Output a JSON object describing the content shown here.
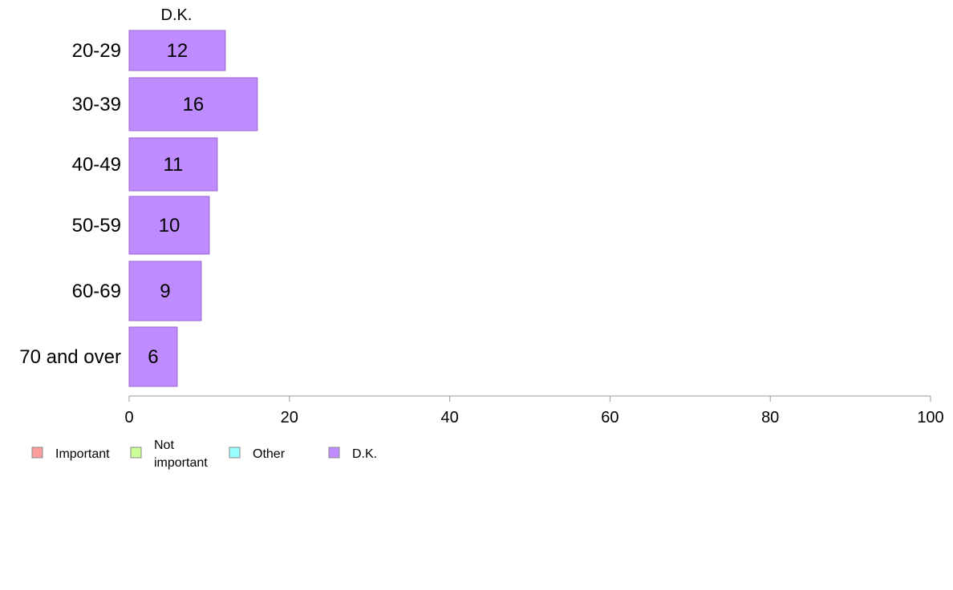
{
  "chart_data": {
    "type": "bar",
    "orientation": "horizontal",
    "panel_title": "D.K.",
    "categories": [
      "20-29",
      "30-39",
      "40-49",
      "50-59",
      "60-69",
      "70 and over"
    ],
    "series": [
      {
        "name": "D.K.",
        "color": "#bf8cff",
        "values": [
          12,
          16,
          11,
          10,
          9,
          6
        ]
      }
    ],
    "xlim": [
      0,
      100
    ],
    "xticks": [
      0,
      20,
      40,
      60,
      80,
      100
    ],
    "grid": false,
    "legend_position": "bottom-left",
    "legend": [
      {
        "lines": [
          "Important"
        ],
        "color": "#ff9c9c"
      },
      {
        "lines": [
          "Not",
          "important"
        ],
        "color": "#ccff99"
      },
      {
        "lines": [
          "Other"
        ],
        "color": "#99ffff"
      },
      {
        "lines": [
          "D.K."
        ],
        "color": "#bf8cff"
      }
    ]
  },
  "colors": {
    "bar_stroke": "#9966cc",
    "axis": "#999999"
  }
}
